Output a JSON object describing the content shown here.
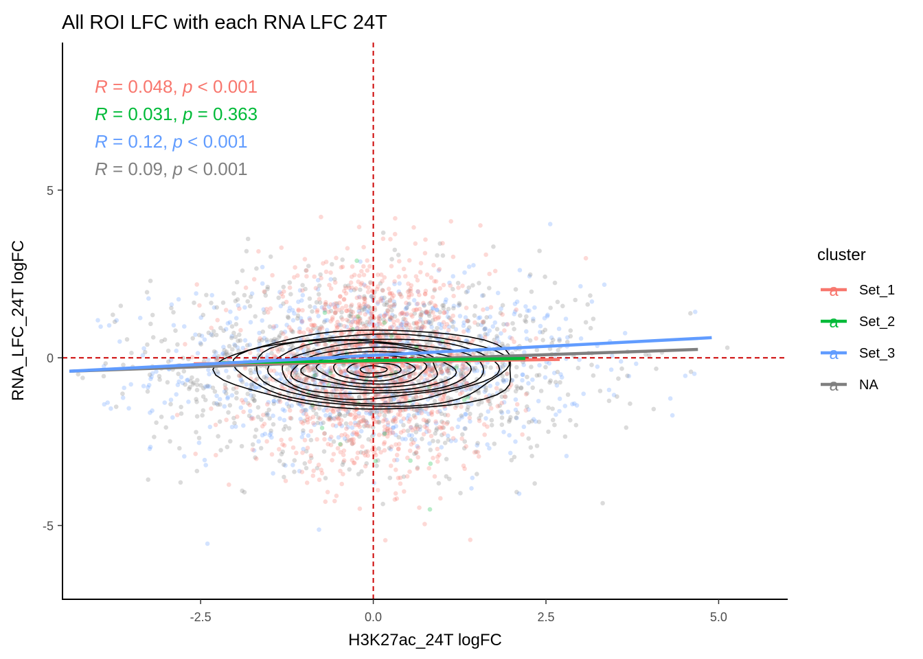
{
  "chart_data": {
    "type": "scatter",
    "title": "All ROI LFC with each RNA LFC 24T",
    "xlabel": "H3K27ac_24T logFC",
    "ylabel": "RNA_LFC_24T logFC",
    "xlim": [
      -4.5,
      6.0
    ],
    "ylim": [
      -7.2,
      9.4
    ],
    "x_ticks": [
      -2.5,
      0.0,
      2.5,
      5.0
    ],
    "x_tick_labels": [
      "-2.5",
      "0.0",
      "2.5",
      "5.0"
    ],
    "y_ticks": [
      -5,
      0,
      5
    ],
    "y_tick_labels": [
      "-5",
      "0",
      "5"
    ],
    "reference_lines": {
      "x": 0,
      "y": 0,
      "color": "#cc0000",
      "style": "dashed"
    },
    "legend": {
      "title": "cluster",
      "position": "right",
      "key_glyph": "a",
      "entries": [
        {
          "label": "Set_1",
          "color": "#F8766D"
        },
        {
          "label": "Set_2",
          "color": "#00BA38"
        },
        {
          "label": "Set_3",
          "color": "#619CFF"
        },
        {
          "label": "NA",
          "color": "#7F7F7F"
        }
      ]
    },
    "series": [
      {
        "name": "Set_1",
        "color": "#F8766D",
        "point_sd": [
          0.85,
          1.5
        ],
        "fit_line": {
          "x": [
            -2.6,
            2.7
          ],
          "y": [
            -0.18,
            -0.05
          ]
        }
      },
      {
        "name": "Set_2",
        "color": "#00BA38",
        "point_sd": [
          0.8,
          1.2
        ],
        "fit_line": {
          "x": [
            -2.2,
            2.2
          ],
          "y": [
            -0.15,
            -0.02
          ]
        }
      },
      {
        "name": "Set_3",
        "color": "#619CFF",
        "point_sd": [
          1.55,
          1.25
        ],
        "fit_line": {
          "x": [
            -4.4,
            4.9
          ],
          "y": [
            -0.4,
            0.6
          ]
        }
      },
      {
        "name": "NA",
        "color": "#7F7F7F",
        "point_sd": [
          1.6,
          1.4
        ],
        "fit_line": {
          "x": [
            -4.4,
            4.7
          ],
          "y": [
            -0.4,
            0.25
          ]
        }
      }
    ],
    "density_contours": {
      "center": [
        0.0,
        -0.35
      ],
      "levels": 11,
      "max_radius": [
        2.15,
        1.9
      ],
      "color": "#000000"
    },
    "annotations": [
      {
        "r_label": "R",
        "r_value": " = 0.048, ",
        "p_label": "p",
        "p_value": " < 0.001",
        "color": "#F8766D"
      },
      {
        "r_label": "R",
        "r_value": " = 0.031, ",
        "p_label": "p",
        "p_value": " = 0.363",
        "color": "#00BA38"
      },
      {
        "r_label": "R",
        "r_value": " = 0.12, ",
        "p_label": "p",
        "p_value": " < 0.001",
        "color": "#619CFF"
      },
      {
        "r_label": "R",
        "r_value": " = 0.09, ",
        "p_label": "p",
        "p_value": " < 0.001",
        "color": "#7F7F7F"
      }
    ]
  }
}
